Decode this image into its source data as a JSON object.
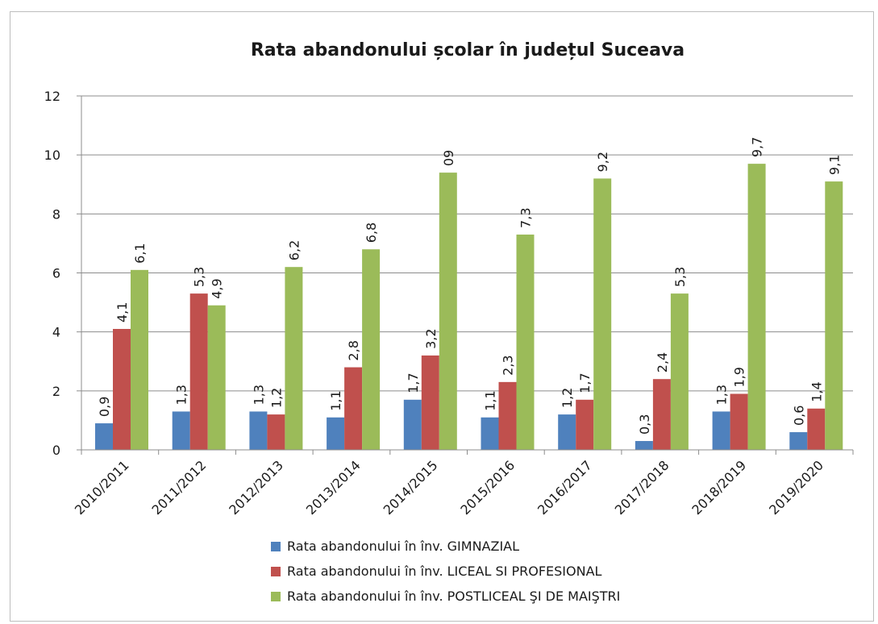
{
  "chart_data": {
    "type": "bar",
    "title": "Rata abandonului școlar în județul Suceava",
    "xlabel": "",
    "ylabel": "",
    "ylim": [
      0,
      12
    ],
    "yticks": [
      "0",
      "2",
      "4",
      "6",
      "8",
      "10",
      "12"
    ],
    "grid": true,
    "legend_position": "bottom",
    "categories": [
      "2010/2011",
      "2011/2012",
      "2012/2013",
      "2013/2014",
      "2014/2015",
      "2015/2016",
      "2016/2017",
      "2017/2018",
      "2018/2019",
      "2019/2020"
    ],
    "series": [
      {
        "name": "Rata abandonului în înv. GIMNAZIAL",
        "color": "#4f81bd",
        "values": [
          0.9,
          1.3,
          1.3,
          1.1,
          1.7,
          1.1,
          1.2,
          0.3,
          1.3,
          0.6
        ],
        "labels": [
          "0,9",
          "1,3",
          "1,3",
          "1,1",
          "1,7",
          "1,1",
          "1,2",
          "0,3",
          "1,3",
          "0,6"
        ]
      },
      {
        "name": "Rata abandonului în înv. LICEAL SI PROFESIONAL",
        "color": "#c0504d",
        "values": [
          4.1,
          5.3,
          1.2,
          2.8,
          3.2,
          2.3,
          1.7,
          2.4,
          1.9,
          1.4
        ],
        "labels": [
          "4,1",
          "5,3",
          "1,2",
          "2,8",
          "3,2",
          "2,3",
          "1,7",
          "2,4",
          "1,9",
          "1,4"
        ]
      },
      {
        "name": "Rata abandonului în înv. POSTLICEAL ŞI DE MAIŞTRI",
        "color": "#9bbb59",
        "values": [
          6.1,
          4.9,
          6.2,
          6.8,
          9.4,
          7.3,
          9.2,
          5.3,
          9.7,
          9.1
        ],
        "labels": [
          "6,1",
          "4,9",
          "6,2",
          "6,8",
          "09",
          "7,3",
          "9,2",
          "5,3",
          "9,7",
          "9,1"
        ]
      }
    ]
  }
}
